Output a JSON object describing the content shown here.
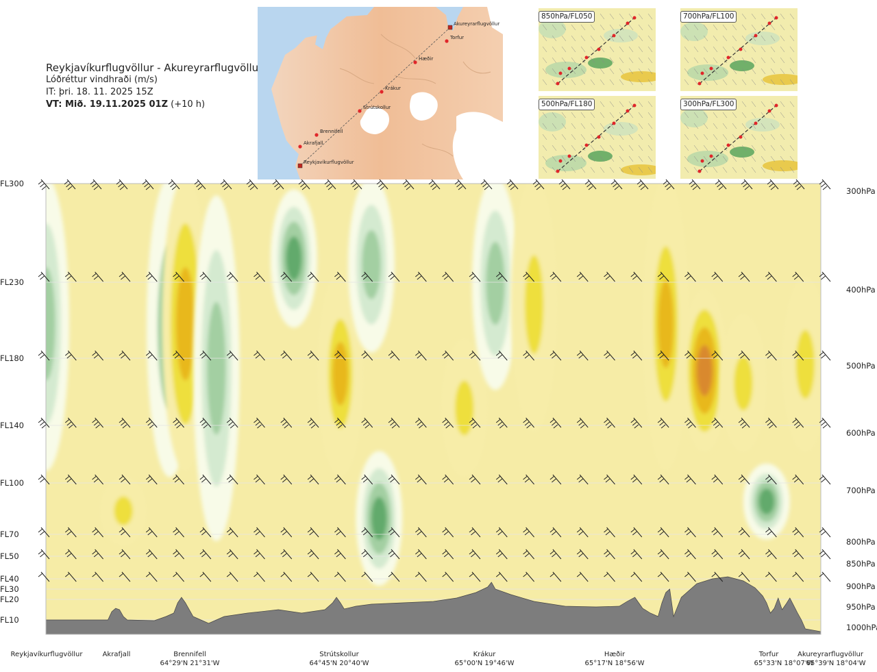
{
  "header": {
    "route": "Reykjavíkurflugvöllur - Akureyrarflugvöllur",
    "parameter": "Lóðréttur vindhraði (m/s)",
    "issue_time": "IT: þri. 18. 11. 2025 15Z",
    "valid_time_bold": "VT: Mið. 19.11.2025 01Z",
    "valid_time_offset": "(+10 h)"
  },
  "route_map": {
    "waypoints": [
      {
        "name": "Reykjavíkurflugvöllur",
        "lat": 64.13,
        "lon": -21.94
      },
      {
        "name": "Akrafjall",
        "lat": 64.33,
        "lon": -21.95
      },
      {
        "name": "Brennifell",
        "lat": 64.48,
        "lon": -21.52
      },
      {
        "name": "Strútskollur",
        "lat": 64.75,
        "lon": -20.67
      },
      {
        "name": "Krákur",
        "lat": 65.0,
        "lon": -19.77
      },
      {
        "name": "Hæðir",
        "lat": 65.28,
        "lon": -18.93
      },
      {
        "name": "Torfur",
        "lat": 65.55,
        "lon": -18.12
      },
      {
        "name": "Akureyrarflugvöllur",
        "lat": 65.65,
        "lon": -18.07
      }
    ]
  },
  "panels": [
    {
      "label": "850hPa/FL050"
    },
    {
      "label": "700hPa/FL100"
    },
    {
      "label": "500hPa/FL180"
    },
    {
      "label": "300hPa/FL300"
    }
  ],
  "chart_data": {
    "type": "heatmap",
    "title": "Lóðréttur vindhraði (m/s)",
    "x_waypoints": [
      {
        "name": "Reykjavíkurflugvöllur",
        "coord": "",
        "pos": 0.0
      },
      {
        "name": "Akrafjall",
        "coord": "",
        "pos": 0.09
      },
      {
        "name": "Brennifell",
        "coord": "64°29'N 21°31'W",
        "pos": 0.186
      },
      {
        "name": "Strútskollur",
        "coord": "64°45'N 20°40'W",
        "pos": 0.38
      },
      {
        "name": "Krákur",
        "coord": "65°00'N 19°46'W",
        "pos": 0.572
      },
      {
        "name": "Hæðir",
        "coord": "65°17'N 18°56'W",
        "pos": 0.76
      },
      {
        "name": "Torfur",
        "coord": "65°33'N 18°07'W",
        "pos": 0.96
      },
      {
        "name": "Akureyrarflugvöllur",
        "coord": "65°39'N 18°04'W",
        "pos": 1.0
      }
    ],
    "levels": [
      {
        "fl": "FL300",
        "hpa": "300hPa",
        "p": 300
      },
      {
        "fl": "FL230",
        "hpa": "400hPa",
        "p": 400
      },
      {
        "fl": "FL180",
        "hpa": "500hPa",
        "p": 500
      },
      {
        "fl": "FL140",
        "hpa": "600hPa",
        "p": 600
      },
      {
        "fl": "FL100",
        "hpa": "700hPa",
        "p": 700
      },
      {
        "fl": "FL70",
        "hpa": "800hPa",
        "p": 800
      },
      {
        "fl": "FL50",
        "hpa": "850hPa",
        "p": 850
      },
      {
        "fl": "FL40",
        "hpa": "900hPa",
        "p": 900
      },
      {
        "fl": "FL30",
        "hpa": "",
        "p": 925
      },
      {
        "fl": "FL20",
        "hpa": "950hPa",
        "p": 950
      },
      {
        "fl": "FL10",
        "hpa": "1000hPa",
        "p": 1000
      }
    ],
    "ylim_hpa": [
      300,
      1000
    ],
    "color_scale": [
      {
        "color": "#2f8a3e"
      },
      {
        "color": "#62aa6c"
      },
      {
        "color": "#a3cfa2"
      },
      {
        "color": "#d4ead0"
      },
      {
        "color": "#f8fbe8"
      },
      {
        "color": "#f7eda8"
      },
      {
        "color": "#eedf3c"
      },
      {
        "color": "#e8b81c"
      },
      {
        "color": "#d9892e"
      }
    ],
    "ascent_descent_columns": [
      {
        "pos": 0.0,
        "top_hpa": 300,
        "bottom_hpa": 750,
        "value": -1.3
      },
      {
        "pos": 0.1,
        "top_hpa": 700,
        "bottom_hpa": 870,
        "value": 1.2
      },
      {
        "pos": 0.16,
        "top_hpa": 300,
        "bottom_hpa": 760,
        "value": -1.0
      },
      {
        "pos": 0.18,
        "top_hpa": 300,
        "bottom_hpa": 750,
        "value": 2.0
      },
      {
        "pos": 0.22,
        "top_hpa": 330,
        "bottom_hpa": 800,
        "value": -1.2
      },
      {
        "pos": 0.32,
        "top_hpa": 320,
        "bottom_hpa": 520,
        "value": -2.5
      },
      {
        "pos": 0.38,
        "top_hpa": 450,
        "bottom_hpa": 760,
        "value": 2.2
      },
      {
        "pos": 0.42,
        "top_hpa": 300,
        "bottom_hpa": 560,
        "value": -1.2
      },
      {
        "pos": 0.43,
        "top_hpa": 740,
        "bottom_hpa": 900,
        "value": -2.5
      },
      {
        "pos": 0.54,
        "top_hpa": 560,
        "bottom_hpa": 760,
        "value": 1.3
      },
      {
        "pos": 0.58,
        "top_hpa": 300,
        "bottom_hpa": 620,
        "value": -1.3
      },
      {
        "pos": 0.63,
        "top_hpa": 300,
        "bottom_hpa": 600,
        "value": 1.8
      },
      {
        "pos": 0.8,
        "top_hpa": 300,
        "bottom_hpa": 750,
        "value": 2.5
      },
      {
        "pos": 0.85,
        "top_hpa": 480,
        "bottom_hpa": 720,
        "value": 3.0
      },
      {
        "pos": 0.9,
        "top_hpa": 520,
        "bottom_hpa": 720,
        "value": 1.6
      },
      {
        "pos": 0.93,
        "top_hpa": 760,
        "bottom_hpa": 860,
        "value": -2.3
      },
      {
        "pos": 0.98,
        "top_hpa": 460,
        "bottom_hpa": 720,
        "value": 1.6
      }
    ]
  }
}
